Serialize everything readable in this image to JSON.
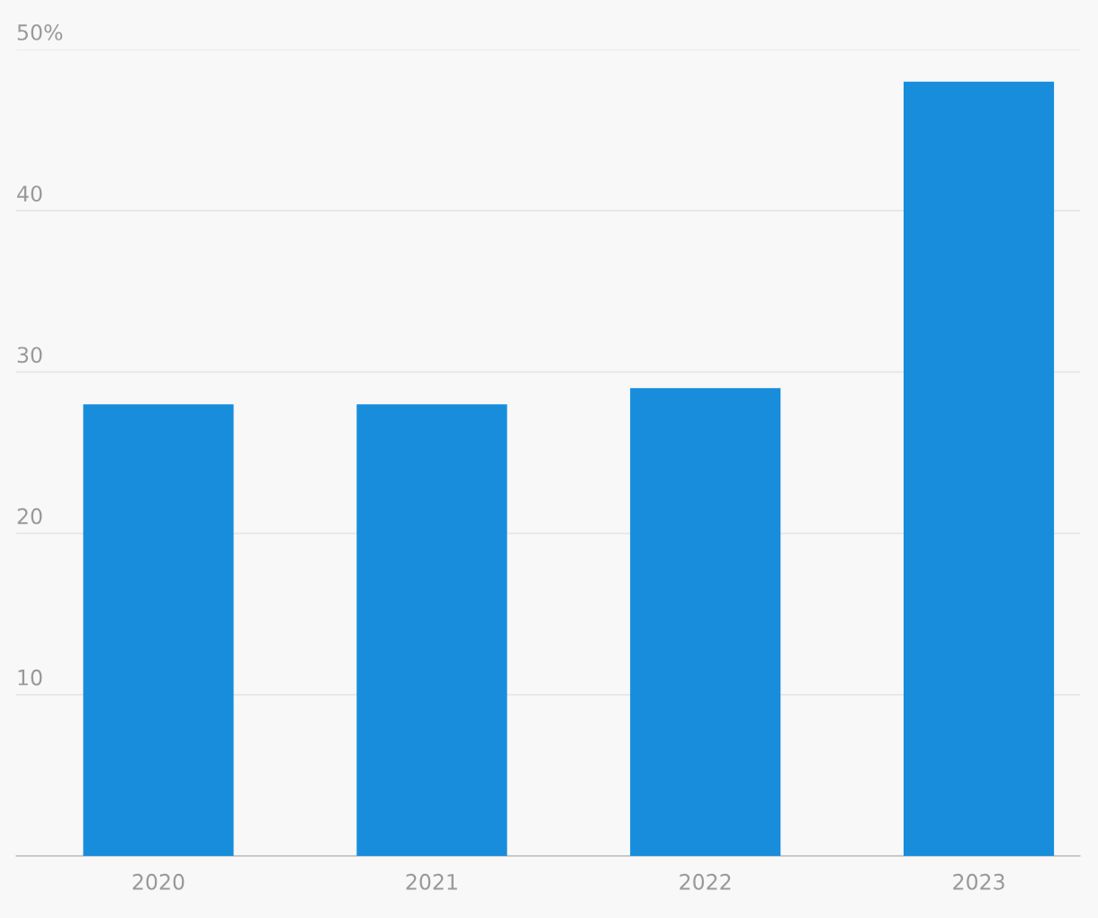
{
  "chart_data": {
    "type": "bar",
    "categories": [
      "2020",
      "2021",
      "2022",
      "2023"
    ],
    "values": [
      28,
      28,
      29,
      48
    ],
    "color": "#178ddc",
    "ylim": [
      0,
      50
    ],
    "yticks": [
      10,
      20,
      30,
      40,
      {
        "value": 50,
        "label": "50%"
      }
    ],
    "grid": "y",
    "legend": false
  }
}
